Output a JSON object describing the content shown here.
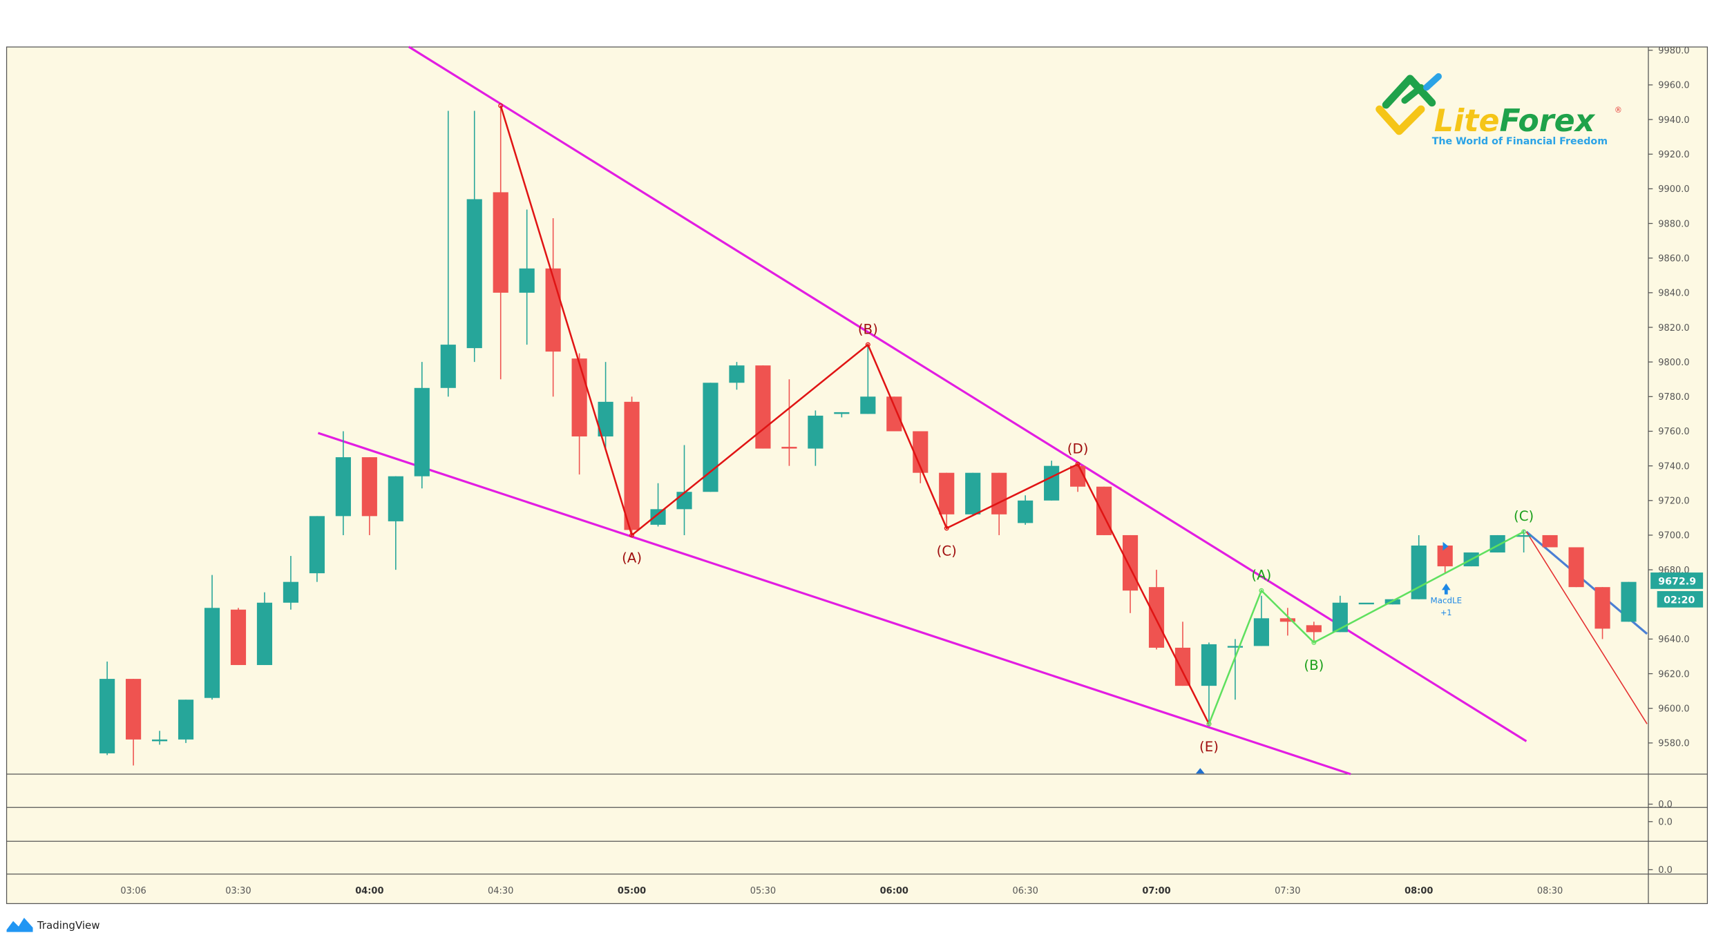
{
  "chart_data": {
    "type": "candlestick",
    "interval_minutes": 6,
    "current_price": "9672.9",
    "countdown": "02:20",
    "y_ticks": [
      "9980.0",
      "9960.0",
      "9940.0",
      "9920.0",
      "9900.0",
      "9880.0",
      "9860.0",
      "9840.0",
      "9820.0",
      "9800.0",
      "9780.0",
      "9760.0",
      "9740.0",
      "9720.0",
      "9700.0",
      "9680.0",
      "9640.0",
      "9620.0",
      "9600.0",
      "9580.0"
    ],
    "ylim": [
      9566,
      9982
    ],
    "x_ticks": [
      {
        "label": "03:06",
        "index": 1,
        "bold": false
      },
      {
        "label": "03:30",
        "index": 5,
        "bold": false
      },
      {
        "label": "04:00",
        "index": 10,
        "bold": true
      },
      {
        "label": "04:30",
        "index": 15,
        "bold": false
      },
      {
        "label": "05:00",
        "index": 20,
        "bold": true
      },
      {
        "label": "05:30",
        "index": 25,
        "bold": false
      },
      {
        "label": "06:00",
        "index": 30,
        "bold": true
      },
      {
        "label": "06:30",
        "index": 35,
        "bold": false
      },
      {
        "label": "07:00",
        "index": 40,
        "bold": true
      },
      {
        "label": "07:30",
        "index": 45,
        "bold": false
      },
      {
        "label": "08:00",
        "index": 50,
        "bold": true
      },
      {
        "label": "08:30",
        "index": 55,
        "bold": false
      }
    ],
    "subpane_ticks": [
      "0.0",
      "0.0",
      "0.0"
    ],
    "candles": [
      {
        "t": "03:00",
        "o": 9574,
        "h": 9627,
        "l": 9573,
        "c": 9617
      },
      {
        "t": "03:06",
        "o": 9617,
        "h": 9617,
        "l": 9567,
        "c": 9582
      },
      {
        "t": "03:12",
        "o": 9581,
        "h": 9587,
        "l": 9579,
        "c": 9582
      },
      {
        "t": "03:18",
        "o": 9582,
        "h": 9605,
        "l": 9580,
        "c": 9605
      },
      {
        "t": "03:24",
        "o": 9606,
        "h": 9677,
        "l": 9605,
        "c": 9658
      },
      {
        "t": "03:30",
        "o": 9657,
        "h": 9658,
        "l": 9625,
        "c": 9625
      },
      {
        "t": "03:36",
        "o": 9625,
        "h": 9667,
        "l": 9625,
        "c": 9661
      },
      {
        "t": "03:42",
        "o": 9661,
        "h": 9688,
        "l": 9657,
        "c": 9673
      },
      {
        "t": "03:48",
        "o": 9678,
        "h": 9711,
        "l": 9673,
        "c": 9711
      },
      {
        "t": "03:54",
        "o": 9711,
        "h": 9760,
        "l": 9700,
        "c": 9745
      },
      {
        "t": "04:00",
        "o": 9745,
        "h": 9745,
        "l": 9700,
        "c": 9711
      },
      {
        "t": "04:06",
        "o": 9708,
        "h": 9734,
        "l": 9680,
        "c": 9734
      },
      {
        "t": "04:12",
        "o": 9734,
        "h": 9800,
        "l": 9727,
        "c": 9785
      },
      {
        "t": "04:18",
        "o": 9785,
        "h": 9945,
        "l": 9780,
        "c": 9810
      },
      {
        "t": "04:24",
        "o": 9808,
        "h": 9945,
        "l": 9800,
        "c": 9894
      },
      {
        "t": "04:30",
        "o": 9898,
        "h": 9948,
        "l": 9790,
        "c": 9840
      },
      {
        "t": "04:36",
        "o": 9840,
        "h": 9888,
        "l": 9810,
        "c": 9854
      },
      {
        "t": "04:42",
        "o": 9854,
        "h": 9883,
        "l": 9780,
        "c": 9806
      },
      {
        "t": "04:48",
        "o": 9802,
        "h": 9805,
        "l": 9735,
        "c": 9757
      },
      {
        "t": "04:54",
        "o": 9757,
        "h": 9800,
        "l": 9750,
        "c": 9777
      },
      {
        "t": "05:00",
        "o": 9777,
        "h": 9780,
        "l": 9700,
        "c": 9703
      },
      {
        "t": "05:06",
        "o": 9706,
        "h": 9730,
        "l": 9705,
        "c": 9715
      },
      {
        "t": "05:12",
        "o": 9715,
        "h": 9752,
        "l": 9700,
        "c": 9725
      },
      {
        "t": "05:18",
        "o": 9725,
        "h": 9788,
        "l": 9725,
        "c": 9788
      },
      {
        "t": "05:24",
        "o": 9788,
        "h": 9800,
        "l": 9784,
        "c": 9798
      },
      {
        "t": "05:30",
        "o": 9798,
        "h": 9798,
        "l": 9750,
        "c": 9750
      },
      {
        "t": "05:36",
        "o": 9751,
        "h": 9790,
        "l": 9740,
        "c": 9750
      },
      {
        "t": "05:42",
        "o": 9750,
        "h": 9772,
        "l": 9740,
        "c": 9769
      },
      {
        "t": "05:48",
        "o": 9770,
        "h": 9771,
        "l": 9768,
        "c": 9771
      },
      {
        "t": "05:54",
        "o": 9770,
        "h": 9810,
        "l": 9770,
        "c": 9780
      },
      {
        "t": "06:00",
        "o": 9780,
        "h": 9780,
        "l": 9760,
        "c": 9760
      },
      {
        "t": "06:06",
        "o": 9760,
        "h": 9760,
        "l": 9730,
        "c": 9736
      },
      {
        "t": "06:12",
        "o": 9736,
        "h": 9736,
        "l": 9704,
        "c": 9712
      },
      {
        "t": "06:18",
        "o": 9712,
        "h": 9736,
        "l": 9711,
        "c": 9736
      },
      {
        "t": "06:24",
        "o": 9736,
        "h": 9736,
        "l": 9700,
        "c": 9712
      },
      {
        "t": "06:30",
        "o": 9707,
        "h": 9723,
        "l": 9706,
        "c": 9720
      },
      {
        "t": "06:36",
        "o": 9720,
        "h": 9743,
        "l": 9720,
        "c": 9740
      },
      {
        "t": "06:42",
        "o": 9740,
        "h": 9742,
        "l": 9725,
        "c": 9728
      },
      {
        "t": "06:48",
        "o": 9728,
        "h": 9728,
        "l": 9700,
        "c": 9700
      },
      {
        "t": "06:54",
        "o": 9700,
        "h": 9700,
        "l": 9655,
        "c": 9668
      },
      {
        "t": "07:00",
        "o": 9670,
        "h": 9680,
        "l": 9634,
        "c": 9635
      },
      {
        "t": "07:06",
        "o": 9635,
        "h": 9650,
        "l": 9613,
        "c": 9613
      },
      {
        "t": "07:12",
        "o": 9613,
        "h": 9638,
        "l": 9590,
        "c": 9637
      },
      {
        "t": "07:18",
        "o": 9636,
        "h": 9640,
        "l": 9605,
        "c": 9636
      },
      {
        "t": "07:24",
        "o": 9636,
        "h": 9665,
        "l": 9636,
        "c": 9652
      },
      {
        "t": "07:30",
        "o": 9652,
        "h": 9658,
        "l": 9642,
        "c": 9650
      },
      {
        "t": "07:36",
        "o": 9648,
        "h": 9650,
        "l": 9638,
        "c": 9644
      },
      {
        "t": "07:42",
        "o": 9644,
        "h": 9665,
        "l": 9644,
        "c": 9661
      },
      {
        "t": "07:48",
        "o": 9661,
        "h": 9661,
        "l": 9661,
        "c": 9661
      },
      {
        "t": "07:54",
        "o": 9660,
        "h": 9663,
        "l": 9660,
        "c": 9663
      },
      {
        "t": "08:00",
        "o": 9663,
        "h": 9700,
        "l": 9663,
        "c": 9694
      },
      {
        "t": "08:06",
        "o": 9694,
        "h": 9694,
        "l": 9678,
        "c": 9682
      },
      {
        "t": "08:12",
        "o": 9682,
        "h": 9690,
        "l": 9682,
        "c": 9690
      },
      {
        "t": "08:18",
        "o": 9690,
        "h": 9700,
        "l": 9690,
        "c": 9700
      },
      {
        "t": "08:24",
        "o": 9700,
        "h": 9703,
        "l": 9690,
        "c": 9700
      },
      {
        "t": "08:30",
        "o": 9700,
        "h": 9700,
        "l": 9693,
        "c": 9693
      },
      {
        "t": "08:36",
        "o": 9693,
        "h": 9693,
        "l": 9670,
        "c": 9670
      },
      {
        "t": "08:42",
        "o": 9670,
        "h": 9670,
        "l": 9640,
        "c": 9646
      },
      {
        "t": "08:48",
        "o": 9650,
        "h": 9673,
        "l": 9650,
        "c": 9673
      }
    ],
    "trendlines": [
      {
        "name": "upper-wedge-line",
        "color": "#e21de2",
        "points": [
          [
            11.5,
            9982
          ],
          [
            54.1,
            9581
          ]
        ]
      },
      {
        "name": "lower-wedge-line",
        "color": "#e21de2",
        "points": [
          [
            8.04,
            9759
          ],
          [
            47.4,
            9562
          ]
        ]
      },
      {
        "name": "blue-line",
        "color": "#4a7fd4",
        "points": [
          [
            54.1,
            9702
          ],
          [
            58.7,
            9643
          ]
        ]
      },
      {
        "name": "thin-red-line",
        "color": "#e53030",
        "points": [
          [
            54.1,
            9702
          ],
          [
            58.7,
            9591
          ]
        ]
      }
    ],
    "waves": [
      {
        "name": "red-wave",
        "color": "#e01414",
        "label_color": "#a01010",
        "points": [
          {
            "i": 15,
            "p": 9948,
            "label": ""
          },
          {
            "i": 20,
            "p": 9700,
            "label": "(A)",
            "pos": "below"
          },
          {
            "i": 29,
            "p": 9810,
            "label": "(B)",
            "pos": "above"
          },
          {
            "i": 32,
            "p": 9704,
            "label": "(C)",
            "pos": "below"
          },
          {
            "i": 37,
            "p": 9741,
            "label": "(D)",
            "pos": "above"
          },
          {
            "i": 42,
            "p": 9591,
            "label": "(E)",
            "pos": "below"
          }
        ]
      },
      {
        "name": "green-wave",
        "color": "#5fe05f",
        "label_color": "#1ca01c",
        "points": [
          {
            "i": 42,
            "p": 9591,
            "label": ""
          },
          {
            "i": 44,
            "p": 9668,
            "label": "(A)",
            "pos": "above"
          },
          {
            "i": 46,
            "p": 9638,
            "label": "(B)",
            "pos": "below"
          },
          {
            "i": 54,
            "p": 9702,
            "label": "(C)",
            "pos": "above"
          }
        ]
      }
    ],
    "signal": {
      "label": "MacdLE",
      "qty": "+1",
      "index": 51,
      "color": "#1e88e5"
    }
  },
  "logo": {
    "name_part1": "Lite",
    "name_part2": "Forex",
    "registered": "®",
    "tagline": "The World of Financial Freedom"
  },
  "footer": {
    "brand": "TradingView"
  },
  "colors": {
    "up": "#26a69a",
    "down": "#ef5350",
    "background": "#fdf9e3"
  }
}
